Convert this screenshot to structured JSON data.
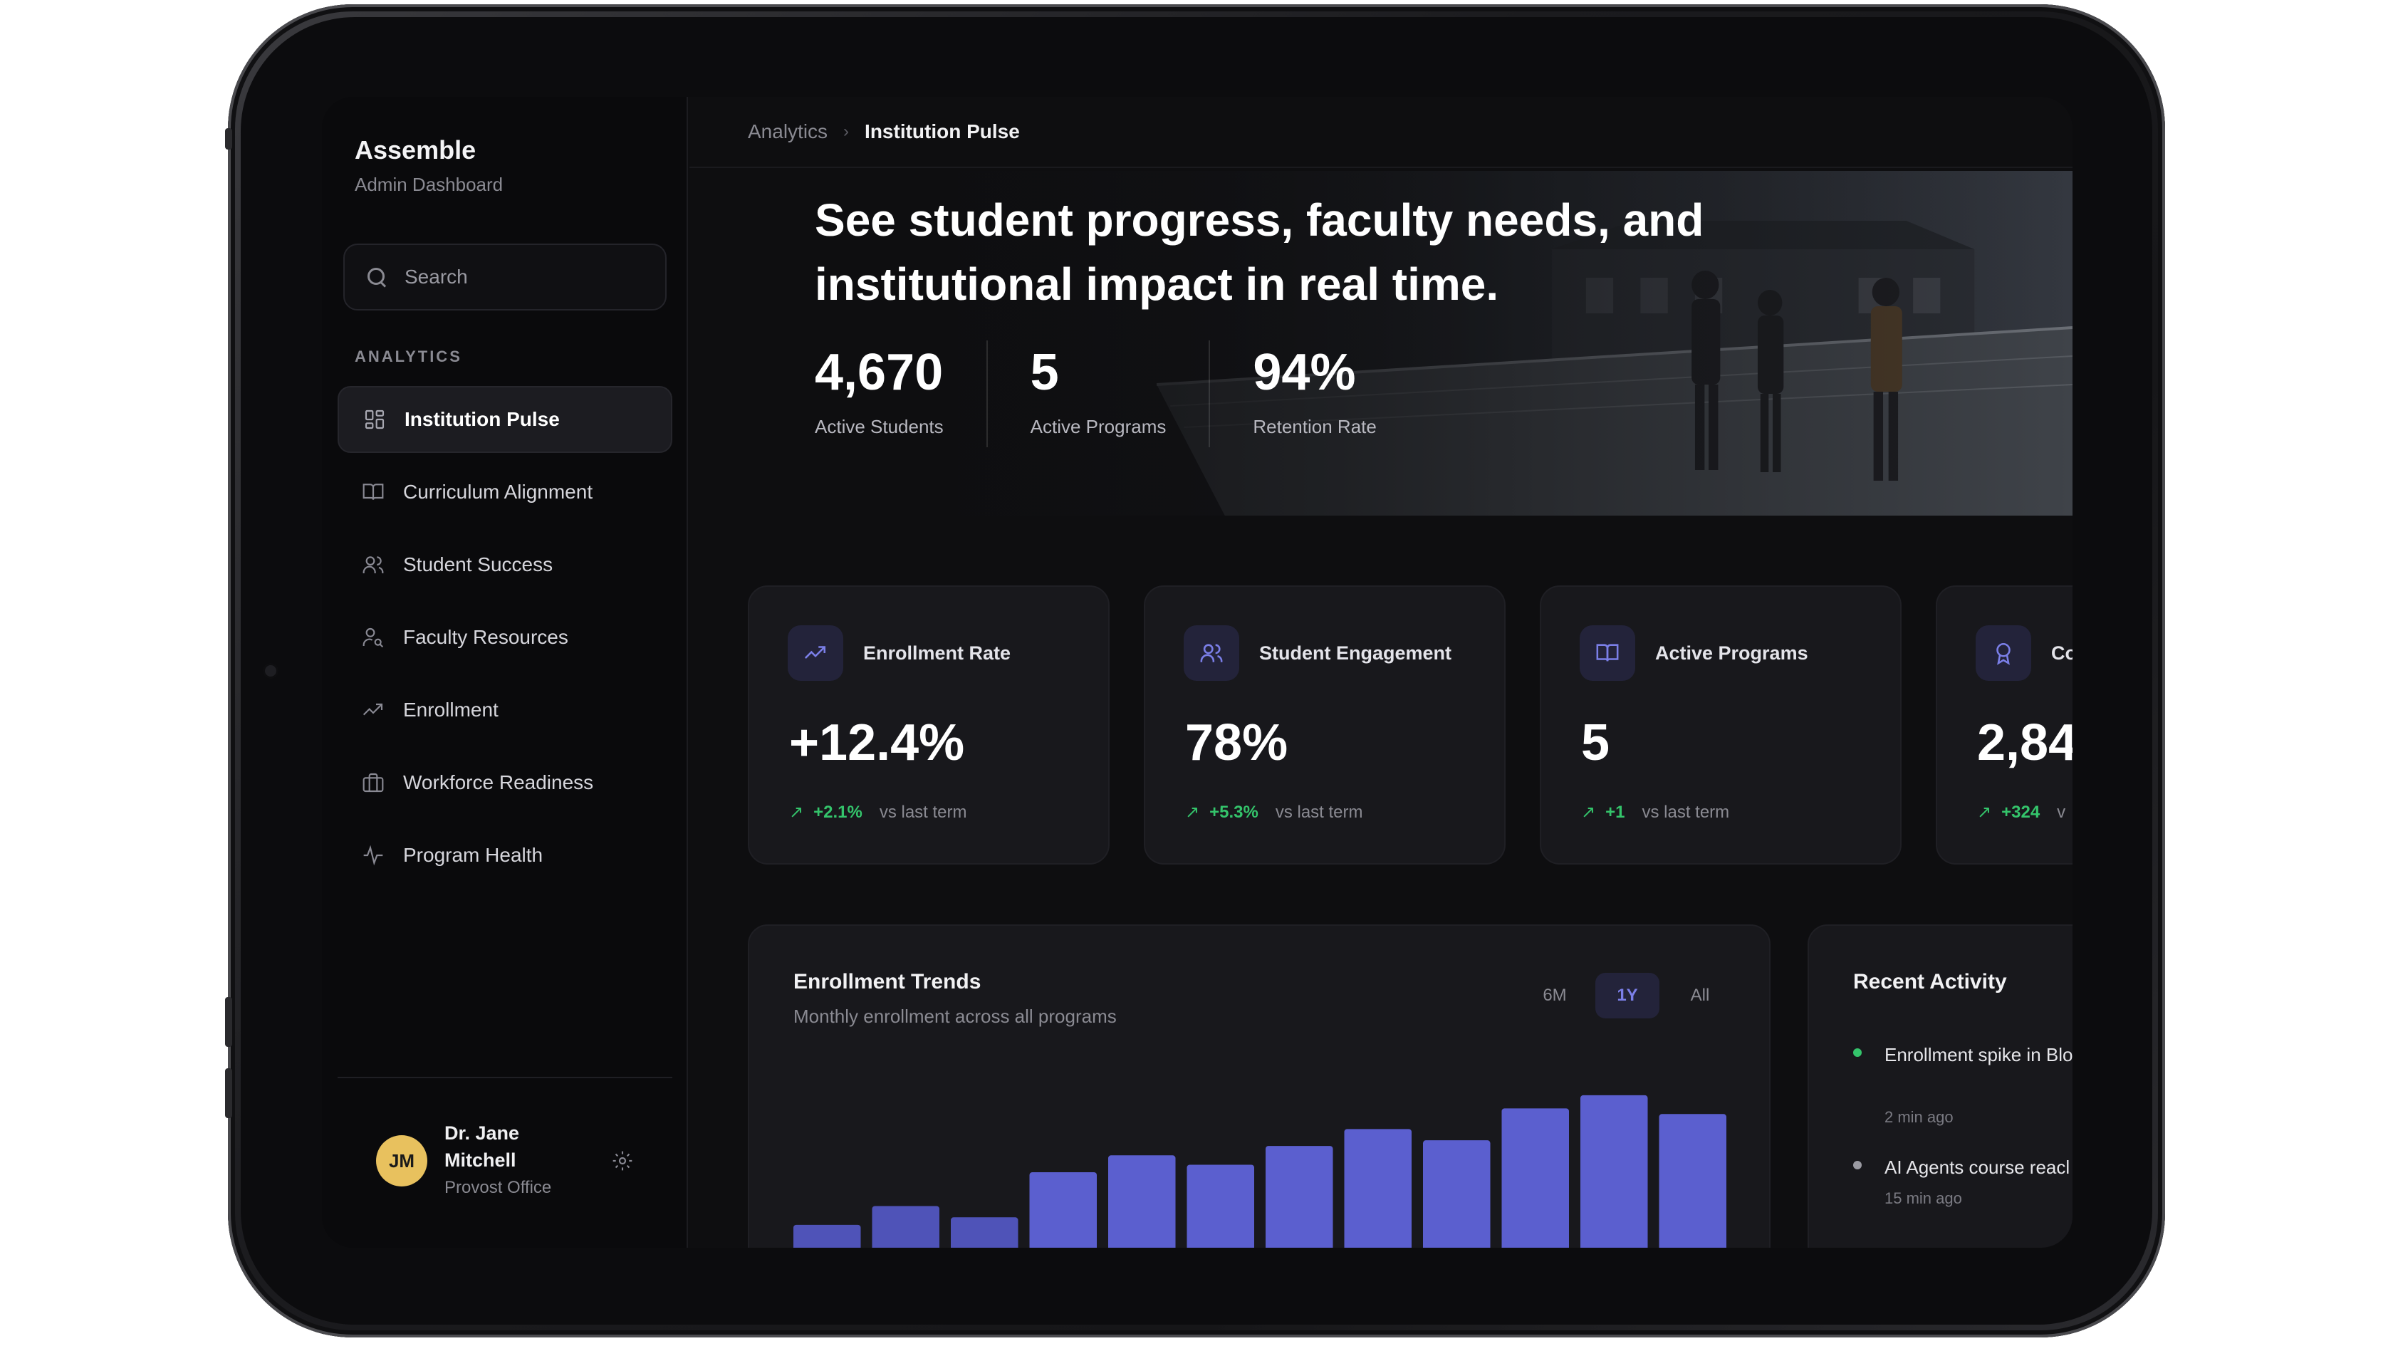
{
  "app": {
    "name": "Assemble",
    "subtitle": "Admin Dashboard"
  },
  "search": {
    "placeholder": "Search"
  },
  "sidebar": {
    "section_label": "ANALYTICS",
    "items": [
      {
        "label": "Institution Pulse",
        "icon": "grid-icon",
        "active": true
      },
      {
        "label": "Curriculum Alignment",
        "icon": "book-icon",
        "active": false
      },
      {
        "label": "Student Success",
        "icon": "users-icon",
        "active": false
      },
      {
        "label": "Faculty Resources",
        "icon": "user-key-icon",
        "active": false
      },
      {
        "label": "Enrollment",
        "icon": "trend-up-icon",
        "active": false
      },
      {
        "label": "Workforce Readiness",
        "icon": "briefcase-icon",
        "active": false
      },
      {
        "label": "Program Health",
        "icon": "pulse-icon",
        "active": false
      }
    ]
  },
  "user": {
    "initials": "JM",
    "name": "Dr. Jane Mitchell",
    "role": "Provost Office"
  },
  "breadcrumb": {
    "parent": "Analytics",
    "current": "Institution Pulse"
  },
  "hero": {
    "title": "See student progress, faculty needs, and institutional impact in real time.",
    "stats": [
      {
        "value": "4,670",
        "label": "Active Students"
      },
      {
        "value": "5",
        "label": "Active Programs"
      },
      {
        "value": "94%",
        "label": "Retention Rate"
      }
    ]
  },
  "cards": [
    {
      "label": "Enrollment Rate",
      "icon": "trend-up-icon",
      "value": "+12.4%",
      "delta": "+2.1%",
      "compare": "vs last term"
    },
    {
      "label": "Student Engagement",
      "icon": "users-icon",
      "value": "78%",
      "delta": "+5.3%",
      "compare": "vs last term"
    },
    {
      "label": "Active Programs",
      "icon": "book-icon",
      "value": "5",
      "delta": "+1",
      "compare": "vs last term"
    },
    {
      "label": "Co",
      "icon": "award-icon",
      "value": "2,84",
      "delta": "+324",
      "compare": "v"
    }
  ],
  "trends": {
    "title": "Enrollment Trends",
    "subtitle": "Monthly enrollment across all programs",
    "ranges": [
      "6M",
      "1Y",
      "All"
    ],
    "active_range": "1Y"
  },
  "chart_data": {
    "type": "bar",
    "values": [
      38,
      48,
      42,
      66,
      75,
      70,
      80,
      89,
      83,
      100,
      107,
      97
    ],
    "ylim": [
      0,
      110
    ],
    "colors": [
      "#4f53b8",
      "#5b5fcf"
    ]
  },
  "activity": {
    "title": "Recent Activity",
    "items": [
      {
        "text": "Enrollment spike in Blo Infrastructure",
        "time": "2 min ago",
        "dot": "#34c46b"
      },
      {
        "text": "AI Agents course reacl",
        "time": "15 min ago",
        "dot": "#9a9aa2"
      }
    ]
  }
}
